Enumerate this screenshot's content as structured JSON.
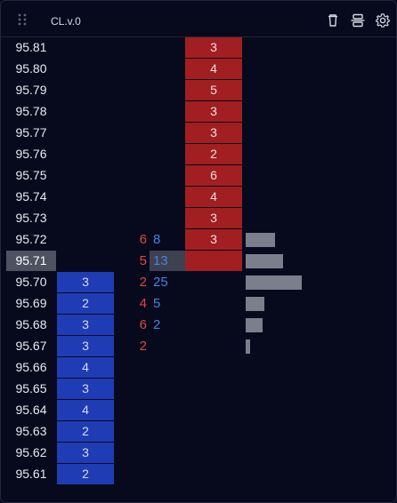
{
  "header": {
    "title": "CL.v.0",
    "icons": [
      "drag-handle-icon",
      "trash-icon",
      "center-icon",
      "gear-icon"
    ]
  },
  "colors": {
    "background": "#06091a",
    "bid": "#1f3cb4",
    "ask": "#a11f21",
    "sell_text": "#e0453f",
    "buy_text": "#4a7fe6",
    "current_price": "#4d5160",
    "volume_bar": "#7b7f8c"
  },
  "ladder": {
    "current_price": "95.71",
    "rows": [
      {
        "price": "95.81",
        "bid": "",
        "ask": "3",
        "sell": "",
        "buy": "",
        "volume": 0
      },
      {
        "price": "95.80",
        "bid": "",
        "ask": "4",
        "sell": "",
        "buy": "",
        "volume": 0
      },
      {
        "price": "95.79",
        "bid": "",
        "ask": "5",
        "sell": "",
        "buy": "",
        "volume": 0
      },
      {
        "price": "95.78",
        "bid": "",
        "ask": "3",
        "sell": "",
        "buy": "",
        "volume": 0
      },
      {
        "price": "95.77",
        "bid": "",
        "ask": "3",
        "sell": "",
        "buy": "",
        "volume": 0
      },
      {
        "price": "95.76",
        "bid": "",
        "ask": "2",
        "sell": "",
        "buy": "",
        "volume": 0
      },
      {
        "price": "95.75",
        "bid": "",
        "ask": "6",
        "sell": "",
        "buy": "",
        "volume": 0
      },
      {
        "price": "95.74",
        "bid": "",
        "ask": "4",
        "sell": "",
        "buy": "",
        "volume": 0
      },
      {
        "price": "95.73",
        "bid": "",
        "ask": "3",
        "sell": "",
        "buy": "",
        "volume": 0
      },
      {
        "price": "95.72",
        "bid": "",
        "ask": "3",
        "sell": "6",
        "buy": "8",
        "volume": 14
      },
      {
        "price": "95.71",
        "bid": "",
        "ask": "",
        "sell": "5",
        "buy": "13",
        "volume": 18
      },
      {
        "price": "95.70",
        "bid": "3",
        "ask": "",
        "sell": "2",
        "buy": "25",
        "volume": 27
      },
      {
        "price": "95.69",
        "bid": "2",
        "ask": "",
        "sell": "4",
        "buy": "5",
        "volume": 9
      },
      {
        "price": "95.68",
        "bid": "3",
        "ask": "",
        "sell": "6",
        "buy": "2",
        "volume": 8
      },
      {
        "price": "95.67",
        "bid": "3",
        "ask": "",
        "sell": "2",
        "buy": "",
        "volume": 2
      },
      {
        "price": "95.66",
        "bid": "4",
        "ask": "",
        "sell": "",
        "buy": "",
        "volume": 0
      },
      {
        "price": "95.65",
        "bid": "3",
        "ask": "",
        "sell": "",
        "buy": "",
        "volume": 0
      },
      {
        "price": "95.64",
        "bid": "4",
        "ask": "",
        "sell": "",
        "buy": "",
        "volume": 0
      },
      {
        "price": "95.63",
        "bid": "2",
        "ask": "",
        "sell": "",
        "buy": "",
        "volume": 0
      },
      {
        "price": "95.62",
        "bid": "3",
        "ask": "",
        "sell": "",
        "buy": "",
        "volume": 0
      },
      {
        "price": "95.61",
        "bid": "2",
        "ask": "",
        "sell": "",
        "buy": "",
        "volume": 0
      }
    ]
  }
}
